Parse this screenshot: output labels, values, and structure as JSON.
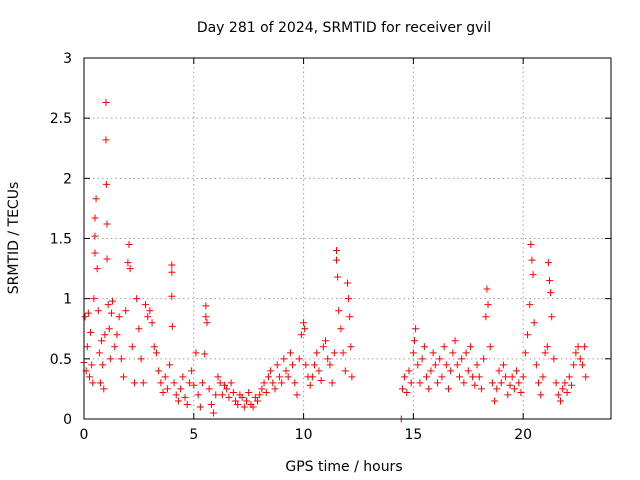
{
  "chart_data": {
    "type": "scatter",
    "title": "Day 281 of 2024, SRMTID for receiver gvil",
    "xlabel": "GPS time / hours",
    "ylabel": "SRMTID / TECUs",
    "xlim": [
      0,
      24
    ],
    "ylim": [
      0,
      3
    ],
    "x_ticks": [
      0,
      5,
      10,
      15,
      20
    ],
    "x_tick_labels": [
      "0",
      "5",
      "10",
      "15",
      "20"
    ],
    "y_ticks": [
      0,
      0.5,
      1,
      1.5,
      2,
      2.5,
      3
    ],
    "y_tick_labels": [
      "0",
      "0.5",
      "1",
      "1.5",
      "2",
      "2.5",
      "3"
    ],
    "grid": true,
    "marker": "+",
    "series": [
      {
        "name": "SRMTID",
        "color": "#ff0000",
        "points": [
          [
            0.0,
            0.47
          ],
          [
            0.05,
            0.85
          ],
          [
            0.1,
            0.4
          ],
          [
            0.15,
            0.6
          ],
          [
            0.2,
            0.88
          ],
          [
            0.25,
            0.35
          ],
          [
            0.3,
            0.72
          ],
          [
            0.35,
            0.45
          ],
          [
            0.4,
            0.3
          ],
          [
            0.45,
            1.0
          ],
          [
            0.5,
            1.52
          ],
          [
            0.5,
            1.38
          ],
          [
            0.5,
            1.67
          ],
          [
            0.55,
            1.83
          ],
          [
            0.6,
            1.25
          ],
          [
            0.65,
            0.9
          ],
          [
            0.7,
            0.55
          ],
          [
            0.75,
            0.3
          ],
          [
            0.8,
            0.65
          ],
          [
            0.85,
            0.45
          ],
          [
            0.9,
            0.25
          ],
          [
            0.95,
            0.7
          ],
          [
            1.0,
            2.63
          ],
          [
            1.0,
            2.32
          ],
          [
            1.02,
            1.95
          ],
          [
            1.05,
            1.62
          ],
          [
            1.05,
            1.33
          ],
          [
            1.1,
            0.95
          ],
          [
            1.15,
            0.75
          ],
          [
            1.2,
            0.5
          ],
          [
            1.25,
            0.88
          ],
          [
            1.3,
            0.98
          ],
          [
            1.4,
            0.6
          ],
          [
            1.5,
            0.7
          ],
          [
            1.6,
            0.85
          ],
          [
            1.7,
            0.5
          ],
          [
            1.8,
            0.35
          ],
          [
            1.9,
            0.9
          ],
          [
            2.0,
            1.3
          ],
          [
            2.05,
            1.45
          ],
          [
            2.1,
            1.25
          ],
          [
            2.2,
            0.6
          ],
          [
            2.3,
            0.3
          ],
          [
            2.4,
            1.0
          ],
          [
            2.5,
            0.75
          ],
          [
            2.6,
            0.5
          ],
          [
            2.7,
            0.3
          ],
          [
            2.8,
            0.95
          ],
          [
            2.9,
            0.85
          ],
          [
            3.0,
            0.9
          ],
          [
            3.1,
            0.8
          ],
          [
            3.2,
            0.6
          ],
          [
            3.3,
            0.55
          ],
          [
            3.4,
            0.4
          ],
          [
            3.5,
            0.3
          ],
          [
            3.6,
            0.22
          ],
          [
            3.7,
            0.35
          ],
          [
            3.8,
            0.25
          ],
          [
            3.9,
            0.45
          ],
          [
            4.0,
            1.28
          ],
          [
            4.0,
            1.22
          ],
          [
            4.0,
            1.02
          ],
          [
            4.02,
            0.77
          ],
          [
            4.1,
            0.3
          ],
          [
            4.2,
            0.2
          ],
          [
            4.3,
            0.15
          ],
          [
            4.4,
            0.25
          ],
          [
            4.5,
            0.35
          ],
          [
            4.6,
            0.18
          ],
          [
            4.7,
            0.12
          ],
          [
            4.8,
            0.3
          ],
          [
            4.9,
            0.4
          ],
          [
            5.0,
            0.28
          ],
          [
            5.1,
            0.55
          ],
          [
            5.2,
            0.2
          ],
          [
            5.3,
            0.1
          ],
          [
            5.4,
            0.3
          ],
          [
            5.5,
            0.54
          ],
          [
            5.55,
            0.94
          ],
          [
            5.55,
            0.85
          ],
          [
            5.6,
            0.8
          ],
          [
            5.7,
            0.25
          ],
          [
            5.8,
            0.12
          ],
          [
            5.9,
            0.05
          ],
          [
            6.0,
            0.2
          ],
          [
            6.1,
            0.35
          ],
          [
            6.2,
            0.3
          ],
          [
            6.3,
            0.2
          ],
          [
            6.4,
            0.28
          ],
          [
            6.5,
            0.25
          ],
          [
            6.6,
            0.18
          ],
          [
            6.7,
            0.3
          ],
          [
            6.8,
            0.22
          ],
          [
            6.9,
            0.15
          ],
          [
            7.0,
            0.12
          ],
          [
            7.1,
            0.2
          ],
          [
            7.2,
            0.18
          ],
          [
            7.3,
            0.1
          ],
          [
            7.4,
            0.15
          ],
          [
            7.5,
            0.22
          ],
          [
            7.6,
            0.12
          ],
          [
            7.7,
            0.1
          ],
          [
            7.8,
            0.18
          ],
          [
            7.9,
            0.15
          ],
          [
            8.0,
            0.2
          ],
          [
            8.1,
            0.25
          ],
          [
            8.2,
            0.3
          ],
          [
            8.3,
            0.22
          ],
          [
            8.4,
            0.35
          ],
          [
            8.5,
            0.4
          ],
          [
            8.6,
            0.3
          ],
          [
            8.7,
            0.25
          ],
          [
            8.8,
            0.45
          ],
          [
            8.9,
            0.35
          ],
          [
            9.0,
            0.3
          ],
          [
            9.1,
            0.5
          ],
          [
            9.2,
            0.4
          ],
          [
            9.3,
            0.35
          ],
          [
            9.4,
            0.55
          ],
          [
            9.5,
            0.45
          ],
          [
            9.6,
            0.3
          ],
          [
            9.7,
            0.2
          ],
          [
            9.8,
            0.5
          ],
          [
            9.9,
            0.7
          ],
          [
            10.0,
            0.8
          ],
          [
            10.05,
            0.75
          ],
          [
            10.1,
            0.45
          ],
          [
            10.2,
            0.35
          ],
          [
            10.3,
            0.28
          ],
          [
            10.4,
            0.35
          ],
          [
            10.5,
            0.45
          ],
          [
            10.6,
            0.55
          ],
          [
            10.7,
            0.4
          ],
          [
            10.8,
            0.32
          ],
          [
            10.9,
            0.6
          ],
          [
            11.0,
            0.65
          ],
          [
            11.1,
            0.5
          ],
          [
            11.2,
            0.45
          ],
          [
            11.3,
            0.3
          ],
          [
            11.4,
            0.55
          ],
          [
            11.5,
            1.4
          ],
          [
            11.5,
            1.32
          ],
          [
            11.55,
            1.18
          ],
          [
            11.6,
            0.9
          ],
          [
            11.7,
            0.75
          ],
          [
            11.8,
            0.55
          ],
          [
            11.9,
            0.4
          ],
          [
            12.0,
            1.13
          ],
          [
            12.05,
            1.0
          ],
          [
            12.1,
            0.85
          ],
          [
            12.15,
            0.6
          ],
          [
            12.2,
            0.35
          ],
          [
            14.45,
            0.0
          ],
          [
            14.5,
            0.25
          ],
          [
            14.6,
            0.35
          ],
          [
            14.7,
            0.22
          ],
          [
            14.8,
            0.4
          ],
          [
            14.9,
            0.3
          ],
          [
            15.0,
            0.55
          ],
          [
            15.05,
            0.65
          ],
          [
            15.1,
            0.75
          ],
          [
            15.2,
            0.45
          ],
          [
            15.3,
            0.3
          ],
          [
            15.4,
            0.5
          ],
          [
            15.5,
            0.6
          ],
          [
            15.6,
            0.35
          ],
          [
            15.7,
            0.25
          ],
          [
            15.8,
            0.4
          ],
          [
            15.9,
            0.55
          ],
          [
            16.0,
            0.45
          ],
          [
            16.1,
            0.3
          ],
          [
            16.2,
            0.5
          ],
          [
            16.3,
            0.35
          ],
          [
            16.4,
            0.6
          ],
          [
            16.5,
            0.45
          ],
          [
            16.6,
            0.25
          ],
          [
            16.7,
            0.4
          ],
          [
            16.8,
            0.55
          ],
          [
            16.9,
            0.65
          ],
          [
            17.0,
            0.45
          ],
          [
            17.1,
            0.35
          ],
          [
            17.2,
            0.5
          ],
          [
            17.3,
            0.3
          ],
          [
            17.4,
            0.55
          ],
          [
            17.5,
            0.4
          ],
          [
            17.6,
            0.6
          ],
          [
            17.7,
            0.35
          ],
          [
            17.8,
            0.28
          ],
          [
            17.9,
            0.45
          ],
          [
            18.0,
            0.35
          ],
          [
            18.1,
            0.25
          ],
          [
            18.2,
            0.5
          ],
          [
            18.3,
            0.85
          ],
          [
            18.35,
            1.08
          ],
          [
            18.4,
            0.95
          ],
          [
            18.5,
            0.6
          ],
          [
            18.6,
            0.3
          ],
          [
            18.7,
            0.15
          ],
          [
            18.8,
            0.25
          ],
          [
            18.9,
            0.4
          ],
          [
            19.0,
            0.3
          ],
          [
            19.1,
            0.45
          ],
          [
            19.2,
            0.35
          ],
          [
            19.3,
            0.2
          ],
          [
            19.4,
            0.28
          ],
          [
            19.5,
            0.35
          ],
          [
            19.6,
            0.25
          ],
          [
            19.7,
            0.4
          ],
          [
            19.8,
            0.3
          ],
          [
            19.9,
            0.22
          ],
          [
            20.0,
            0.35
          ],
          [
            20.1,
            0.55
          ],
          [
            20.2,
            0.7
          ],
          [
            20.3,
            0.95
          ],
          [
            20.35,
            1.45
          ],
          [
            20.4,
            1.32
          ],
          [
            20.45,
            1.2
          ],
          [
            20.5,
            0.8
          ],
          [
            20.6,
            0.45
          ],
          [
            20.7,
            0.3
          ],
          [
            20.8,
            0.2
          ],
          [
            20.9,
            0.35
          ],
          [
            21.0,
            0.55
          ],
          [
            21.1,
            0.6
          ],
          [
            21.15,
            1.3
          ],
          [
            21.2,
            1.15
          ],
          [
            21.25,
            1.05
          ],
          [
            21.3,
            0.85
          ],
          [
            21.4,
            0.5
          ],
          [
            21.5,
            0.3
          ],
          [
            21.6,
            0.2
          ],
          [
            21.7,
            0.15
          ],
          [
            21.8,
            0.25
          ],
          [
            21.9,
            0.3
          ],
          [
            22.0,
            0.22
          ],
          [
            22.1,
            0.35
          ],
          [
            22.2,
            0.28
          ],
          [
            22.3,
            0.45
          ],
          [
            22.4,
            0.55
          ],
          [
            22.5,
            0.6
          ],
          [
            22.6,
            0.5
          ],
          [
            22.7,
            0.45
          ],
          [
            22.8,
            0.6
          ],
          [
            22.85,
            0.35
          ]
        ]
      }
    ]
  }
}
